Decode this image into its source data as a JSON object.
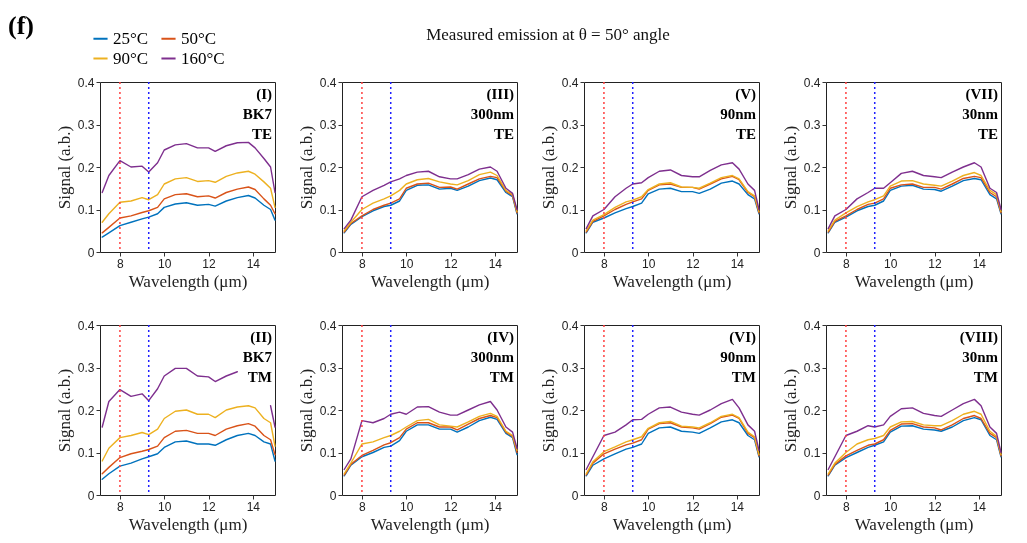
{
  "chart_data": [
    {
      "type": "other",
      "title": "Measured emission at θ = 50° angle"
    },
    {
      "type": "line",
      "annotations": [
        "(I)",
        "BK7",
        "TE",
        "(f)"
      ],
      "legend": "top left",
      "xlabel": "Wavelength (μm)",
      "ylabel": "Signal (a.b.)",
      "xlim": [
        7.1,
        15
      ],
      "xticks": [
        8,
        10,
        12,
        14
      ],
      "ylim": [
        0,
        0.4
      ],
      "yticks": [
        0,
        0.1,
        0.2,
        0.3,
        0.4
      ],
      "ref_lines": [
        {
          "axis": "x",
          "value": 8,
          "color": "#ff4040",
          "line_style": "dotted"
        },
        {
          "axis": "x",
          "value": 9.3,
          "color": "#2020ff",
          "line_style": "dotted"
        }
      ],
      "x": [
        7.2,
        7.5,
        8,
        8.5,
        9,
        9.3,
        9.7,
        10,
        10.5,
        11,
        11.5,
        12,
        12.3,
        12.8,
        13.3,
        13.8,
        14.1,
        14.5,
        14.8,
        15
      ],
      "series": [
        {
          "name": "25°C",
          "color": "#0072bd",
          "values": [
            0.035,
            0.045,
            0.062,
            0.07,
            0.078,
            0.082,
            0.09,
            0.105,
            0.113,
            0.116,
            0.11,
            0.112,
            0.108,
            0.12,
            0.128,
            0.133,
            0.127,
            0.11,
            0.1,
            0.075
          ]
        },
        {
          "name": "50°C",
          "color": "#d95319",
          "values": [
            0.045,
            0.058,
            0.08,
            0.085,
            0.093,
            0.097,
            0.105,
            0.125,
            0.135,
            0.137,
            0.13,
            0.132,
            0.127,
            0.14,
            0.148,
            0.153,
            0.147,
            0.125,
            0.11,
            0.09
          ]
        },
        {
          "name": "90°C",
          "color": "#edb120",
          "values": [
            0.07,
            0.09,
            0.117,
            0.12,
            0.128,
            0.123,
            0.135,
            0.16,
            0.172,
            0.175,
            0.166,
            0.168,
            0.164,
            0.178,
            0.186,
            0.19,
            0.183,
            0.165,
            0.15,
            0.105
          ]
        },
        {
          "name": "160°C",
          "color": "#7e2f8e",
          "values": [
            0.14,
            0.18,
            0.215,
            0.2,
            0.202,
            0.188,
            0.21,
            0.24,
            0.252,
            0.255,
            0.245,
            0.245,
            0.237,
            0.25,
            0.257,
            0.258,
            0.245,
            0.22,
            0.2,
            0.14
          ]
        }
      ]
    },
    {
      "type": "line",
      "annotations": [
        "(III)",
        "300nm",
        "TE"
      ],
      "xlabel": "Wavelength (μm)",
      "ylabel": "Signal (a.b.)",
      "xlim": [
        7.1,
        15
      ],
      "xticks": [
        8,
        10,
        12,
        14
      ],
      "ylim": [
        0,
        0.4
      ],
      "yticks": [
        0,
        0.1,
        0.2,
        0.3,
        0.4
      ],
      "ref_lines": [
        {
          "axis": "x",
          "value": 8,
          "color": "#ff4040",
          "line_style": "dotted"
        },
        {
          "axis": "x",
          "value": 9.3,
          "color": "#2020ff",
          "line_style": "dotted"
        }
      ],
      "x": [
        7.2,
        7.5,
        8,
        8.5,
        9,
        9.3,
        9.7,
        10,
        10.5,
        11,
        11.5,
        12,
        12.3,
        12.8,
        13.3,
        13.8,
        14.1,
        14.5,
        14.8,
        15
      ],
      "series": [
        {
          "color": "#0072bd",
          "values": [
            0.045,
            0.065,
            0.083,
            0.097,
            0.107,
            0.11,
            0.12,
            0.145,
            0.157,
            0.158,
            0.148,
            0.15,
            0.145,
            0.155,
            0.168,
            0.174,
            0.17,
            0.14,
            0.13,
            0.09
          ]
        },
        {
          "color": "#d95319",
          "values": [
            0.047,
            0.067,
            0.085,
            0.1,
            0.11,
            0.115,
            0.125,
            0.15,
            0.16,
            0.162,
            0.152,
            0.153,
            0.148,
            0.16,
            0.172,
            0.178,
            0.175,
            0.143,
            0.133,
            0.092
          ]
        },
        {
          "color": "#edb120",
          "values": [
            0.05,
            0.07,
            0.1,
            0.115,
            0.125,
            0.132,
            0.145,
            0.16,
            0.17,
            0.173,
            0.165,
            0.16,
            0.158,
            0.168,
            0.182,
            0.188,
            0.18,
            0.145,
            0.135,
            0.095
          ]
        },
        {
          "color": "#7e2f8e",
          "values": [
            0.055,
            0.075,
            0.13,
            0.145,
            0.157,
            0.165,
            0.172,
            0.18,
            0.188,
            0.19,
            0.177,
            0.172,
            0.172,
            0.182,
            0.195,
            0.2,
            0.19,
            0.15,
            0.138,
            0.1
          ]
        }
      ]
    },
    {
      "type": "line",
      "annotations": [
        "(V)",
        "90nm",
        "TE"
      ],
      "xlabel": "Wavelength (μm)",
      "ylabel": "Signal (a.b.)",
      "xlim": [
        7.1,
        15
      ],
      "xticks": [
        8,
        10,
        12,
        14
      ],
      "ylim": [
        0,
        0.4
      ],
      "yticks": [
        0,
        0.1,
        0.2,
        0.3,
        0.4
      ],
      "ref_lines": [
        {
          "axis": "x",
          "value": 8,
          "color": "#ff4040",
          "line_style": "dotted"
        },
        {
          "axis": "x",
          "value": 9.3,
          "color": "#2020ff",
          "line_style": "dotted"
        }
      ],
      "x": [
        7.2,
        7.5,
        8,
        8.5,
        9,
        9.3,
        9.7,
        10,
        10.5,
        11,
        11.5,
        12,
        12.3,
        12.8,
        13.3,
        13.8,
        14.1,
        14.5,
        14.8,
        15
      ],
      "series": [
        {
          "color": "#0072bd",
          "values": [
            0.045,
            0.07,
            0.08,
            0.092,
            0.102,
            0.107,
            0.115,
            0.137,
            0.148,
            0.15,
            0.142,
            0.142,
            0.138,
            0.148,
            0.162,
            0.167,
            0.16,
            0.135,
            0.125,
            0.09
          ]
        },
        {
          "color": "#d95319",
          "values": [
            0.047,
            0.072,
            0.085,
            0.1,
            0.112,
            0.118,
            0.125,
            0.145,
            0.158,
            0.16,
            0.152,
            0.152,
            0.148,
            0.16,
            0.172,
            0.178,
            0.17,
            0.14,
            0.13,
            0.092
          ]
        },
        {
          "color": "#edb120",
          "values": [
            0.05,
            0.075,
            0.088,
            0.105,
            0.118,
            0.122,
            0.13,
            0.147,
            0.16,
            0.163,
            0.153,
            0.152,
            0.15,
            0.162,
            0.175,
            0.18,
            0.172,
            0.142,
            0.132,
            0.095
          ]
        },
        {
          "color": "#7e2f8e",
          "values": [
            0.055,
            0.085,
            0.1,
            0.13,
            0.15,
            0.16,
            0.163,
            0.175,
            0.19,
            0.193,
            0.18,
            0.177,
            0.177,
            0.192,
            0.205,
            0.21,
            0.195,
            0.16,
            0.145,
            0.1
          ]
        }
      ]
    },
    {
      "type": "line",
      "annotations": [
        "(VII)",
        "30nm",
        "TE"
      ],
      "xlabel": "Wavelength (μm)",
      "ylabel": "Signal (a.b.)",
      "xlim": [
        7.1,
        15
      ],
      "xticks": [
        8,
        10,
        12,
        14
      ],
      "ylim": [
        0,
        0.4
      ],
      "yticks": [
        0,
        0.1,
        0.2,
        0.3,
        0.4
      ],
      "ref_lines": [
        {
          "axis": "x",
          "value": 8,
          "color": "#ff4040",
          "line_style": "dotted"
        },
        {
          "axis": "x",
          "value": 9.3,
          "color": "#2020ff",
          "line_style": "dotted"
        }
      ],
      "x": [
        7.2,
        7.5,
        8,
        8.5,
        9,
        9.3,
        9.7,
        10,
        10.5,
        11,
        11.5,
        12,
        12.3,
        12.8,
        13.3,
        13.8,
        14.1,
        14.5,
        14.8,
        15
      ],
      "series": [
        {
          "color": "#0072bd",
          "values": [
            0.045,
            0.07,
            0.082,
            0.097,
            0.107,
            0.11,
            0.12,
            0.145,
            0.155,
            0.157,
            0.148,
            0.147,
            0.143,
            0.155,
            0.168,
            0.173,
            0.17,
            0.135,
            0.125,
            0.09
          ]
        },
        {
          "color": "#d95319",
          "values": [
            0.047,
            0.072,
            0.085,
            0.1,
            0.112,
            0.115,
            0.125,
            0.15,
            0.158,
            0.16,
            0.152,
            0.152,
            0.148,
            0.16,
            0.173,
            0.178,
            0.175,
            0.14,
            0.13,
            0.092
          ]
        },
        {
          "color": "#edb120",
          "values": [
            0.05,
            0.075,
            0.092,
            0.107,
            0.118,
            0.123,
            0.132,
            0.155,
            0.167,
            0.168,
            0.16,
            0.157,
            0.155,
            0.167,
            0.18,
            0.187,
            0.18,
            0.145,
            0.135,
            0.095
          ]
        },
        {
          "color": "#7e2f8e",
          "values": [
            0.055,
            0.085,
            0.1,
            0.125,
            0.14,
            0.15,
            0.15,
            0.163,
            0.185,
            0.19,
            0.18,
            0.177,
            0.175,
            0.188,
            0.2,
            0.21,
            0.2,
            0.15,
            0.14,
            0.1
          ]
        }
      ]
    },
    {
      "type": "line",
      "annotations": [
        "(II)",
        "BK7",
        "TM"
      ],
      "xlabel": "Wavelength (μm)",
      "ylabel": "Signal (a.b.)",
      "xlim": [
        7.1,
        15
      ],
      "xticks": [
        8,
        10,
        12,
        14
      ],
      "ylim": [
        0,
        0.4
      ],
      "yticks": [
        0,
        0.1,
        0.2,
        0.3,
        0.4
      ],
      "ref_lines": [
        {
          "axis": "x",
          "value": 8,
          "color": "#ff4040",
          "line_style": "dotted"
        },
        {
          "axis": "x",
          "value": 9.3,
          "color": "#2020ff",
          "line_style": "dotted"
        }
      ],
      "x": [
        7.2,
        7.5,
        8,
        8.5,
        9,
        9.3,
        9.7,
        10,
        10.5,
        11,
        11.5,
        12,
        12.3,
        12.8,
        13.3,
        13.8,
        14.1,
        14.5,
        14.8,
        15
      ],
      "series": [
        {
          "color": "#0072bd",
          "values": [
            0.037,
            0.05,
            0.068,
            0.075,
            0.085,
            0.09,
            0.097,
            0.112,
            0.125,
            0.127,
            0.12,
            0.12,
            0.117,
            0.13,
            0.14,
            0.145,
            0.14,
            0.125,
            0.12,
            0.08
          ]
        },
        {
          "color": "#d95319",
          "values": [
            0.05,
            0.065,
            0.088,
            0.097,
            0.103,
            0.107,
            0.115,
            0.135,
            0.15,
            0.152,
            0.145,
            0.145,
            0.14,
            0.155,
            0.163,
            0.168,
            0.162,
            0.14,
            0.13,
            0.095
          ]
        },
        {
          "color": "#edb120",
          "values": [
            0.08,
            0.11,
            0.135,
            0.14,
            0.147,
            0.142,
            0.155,
            0.18,
            0.197,
            0.2,
            0.19,
            0.19,
            0.182,
            0.2,
            0.207,
            0.21,
            0.205,
            0.18,
            0.17,
            0.115
          ]
        },
        {
          "color": "#7e2f8e",
          "values": [
            0.16,
            0.22,
            0.248,
            0.232,
            0.238,
            0.222,
            0.25,
            0.28,
            0.298,
            0.298,
            0.28,
            0.278,
            0.267,
            0.28,
            0.29,
            null,
            null,
            null,
            0.21,
            0.16
          ]
        }
      ]
    },
    {
      "type": "line",
      "annotations": [
        "(IV)",
        "300nm",
        "TM"
      ],
      "xlabel": "Wavelength (μm)",
      "ylabel": "Signal (a.b.)",
      "xlim": [
        7.1,
        15
      ],
      "xticks": [
        8,
        10,
        12,
        14
      ],
      "ylim": [
        0,
        0.4
      ],
      "yticks": [
        0,
        0.1,
        0.2,
        0.3,
        0.4
      ],
      "ref_lines": [
        {
          "axis": "x",
          "value": 8,
          "color": "#ff4040",
          "line_style": "dotted"
        },
        {
          "axis": "x",
          "value": 9.3,
          "color": "#2020ff",
          "line_style": "dotted"
        }
      ],
      "x": [
        7.2,
        7.5,
        8,
        8.5,
        9,
        9.3,
        9.7,
        10,
        10.5,
        11,
        11.5,
        12,
        12.3,
        12.8,
        13.3,
        13.8,
        14.1,
        14.5,
        14.8,
        15
      ],
      "series": [
        {
          "color": "#0072bd",
          "values": [
            0.045,
            0.07,
            0.09,
            0.1,
            0.112,
            0.115,
            0.128,
            0.15,
            0.165,
            0.165,
            0.155,
            0.155,
            0.148,
            0.16,
            0.175,
            0.183,
            0.178,
            0.145,
            0.135,
            0.095
          ]
        },
        {
          "color": "#d95319",
          "values": [
            0.047,
            0.072,
            0.093,
            0.105,
            0.118,
            0.123,
            0.135,
            0.155,
            0.17,
            0.17,
            0.16,
            0.16,
            0.153,
            0.167,
            0.18,
            0.187,
            0.182,
            0.148,
            0.138,
            0.1
          ]
        },
        {
          "color": "#edb120",
          "values": [
            0.05,
            0.075,
            0.12,
            0.125,
            0.135,
            0.14,
            0.15,
            0.16,
            0.175,
            0.178,
            0.165,
            0.162,
            0.16,
            0.172,
            0.185,
            0.192,
            0.185,
            0.15,
            0.14,
            0.105
          ]
        },
        {
          "color": "#7e2f8e",
          "values": [
            0.06,
            0.085,
            0.175,
            0.17,
            0.18,
            0.19,
            0.195,
            0.19,
            0.207,
            0.208,
            0.195,
            0.188,
            0.188,
            0.2,
            0.212,
            0.22,
            0.2,
            0.16,
            0.148,
            0.11
          ]
        }
      ]
    },
    {
      "type": "line",
      "annotations": [
        "(VI)",
        "90nm",
        "TM"
      ],
      "xlabel": "Wavelength (μm)",
      "ylabel": "Signal (a.b.)",
      "xlim": [
        7.1,
        15
      ],
      "xticks": [
        8,
        10,
        12,
        14
      ],
      "ylim": [
        0,
        0.4
      ],
      "yticks": [
        0,
        0.1,
        0.2,
        0.3,
        0.4
      ],
      "ref_lines": [
        {
          "axis": "x",
          "value": 8,
          "color": "#ff4040",
          "line_style": "dotted"
        },
        {
          "axis": "x",
          "value": 9.3,
          "color": "#2020ff",
          "line_style": "dotted"
        }
      ],
      "x": [
        7.2,
        7.5,
        8,
        8.5,
        9,
        9.3,
        9.7,
        10,
        10.5,
        11,
        11.5,
        12,
        12.3,
        12.8,
        13.3,
        13.8,
        14.1,
        14.5,
        14.8,
        15
      ],
      "series": [
        {
          "color": "#0072bd",
          "values": [
            0.045,
            0.07,
            0.085,
            0.097,
            0.108,
            0.112,
            0.12,
            0.145,
            0.158,
            0.16,
            0.15,
            0.148,
            0.145,
            0.158,
            0.172,
            0.177,
            0.17,
            0.14,
            0.13,
            0.09
          ]
        },
        {
          "color": "#d95319",
          "values": [
            0.047,
            0.075,
            0.097,
            0.108,
            0.118,
            0.122,
            0.13,
            0.155,
            0.168,
            0.17,
            0.16,
            0.158,
            0.155,
            0.168,
            0.183,
            0.188,
            0.18,
            0.145,
            0.135,
            0.092
          ]
        },
        {
          "color": "#edb120",
          "values": [
            0.05,
            0.078,
            0.102,
            0.113,
            0.125,
            0.13,
            0.137,
            0.157,
            0.17,
            0.173,
            0.162,
            0.16,
            0.158,
            0.17,
            0.185,
            0.19,
            0.182,
            0.148,
            0.137,
            0.095
          ]
        },
        {
          "color": "#7e2f8e",
          "values": [
            0.06,
            0.09,
            0.14,
            0.148,
            0.165,
            0.177,
            0.178,
            0.19,
            0.205,
            0.207,
            0.195,
            0.19,
            0.188,
            0.2,
            0.215,
            0.225,
            0.205,
            0.165,
            0.15,
            0.105
          ]
        }
      ]
    },
    {
      "type": "line",
      "annotations": [
        "(VIII)",
        "30nm",
        "TM"
      ],
      "xlabel": "Wavelength (μm)",
      "ylabel": "Signal (a.b.)",
      "xlim": [
        7.1,
        15
      ],
      "xticks": [
        8,
        10,
        12,
        14
      ],
      "ylim": [
        0,
        0.4
      ],
      "yticks": [
        0,
        0.1,
        0.2,
        0.3,
        0.4
      ],
      "ref_lines": [
        {
          "axis": "x",
          "value": 8,
          "color": "#ff4040",
          "line_style": "dotted"
        },
        {
          "axis": "x",
          "value": 9.3,
          "color": "#2020ff",
          "line_style": "dotted"
        }
      ],
      "x": [
        7.2,
        7.5,
        8,
        8.5,
        9,
        9.3,
        9.7,
        10,
        10.5,
        11,
        11.5,
        12,
        12.3,
        12.8,
        13.3,
        13.8,
        14.1,
        14.5,
        14.8,
        15
      ],
      "series": [
        {
          "color": "#0072bd",
          "values": [
            0.045,
            0.07,
            0.088,
            0.1,
            0.112,
            0.117,
            0.125,
            0.148,
            0.162,
            0.163,
            0.155,
            0.153,
            0.15,
            0.16,
            0.175,
            0.182,
            0.177,
            0.14,
            0.13,
            0.09
          ]
        },
        {
          "color": "#d95319",
          "values": [
            0.047,
            0.072,
            0.092,
            0.105,
            0.117,
            0.12,
            0.13,
            0.152,
            0.167,
            0.168,
            0.16,
            0.158,
            0.153,
            0.165,
            0.18,
            0.187,
            0.18,
            0.145,
            0.135,
            0.092
          ]
        },
        {
          "color": "#edb120",
          "values": [
            0.05,
            0.075,
            0.1,
            0.12,
            0.13,
            0.133,
            0.14,
            0.16,
            0.172,
            0.173,
            0.165,
            0.163,
            0.163,
            0.175,
            0.19,
            0.197,
            0.19,
            0.15,
            0.138,
            0.095
          ]
        },
        {
          "color": "#7e2f8e",
          "values": [
            0.06,
            0.09,
            0.14,
            0.15,
            0.163,
            0.16,
            0.165,
            0.185,
            0.203,
            0.205,
            0.192,
            0.187,
            0.185,
            0.2,
            0.215,
            0.225,
            0.21,
            0.16,
            0.145,
            0.1
          ]
        }
      ]
    }
  ]
}
